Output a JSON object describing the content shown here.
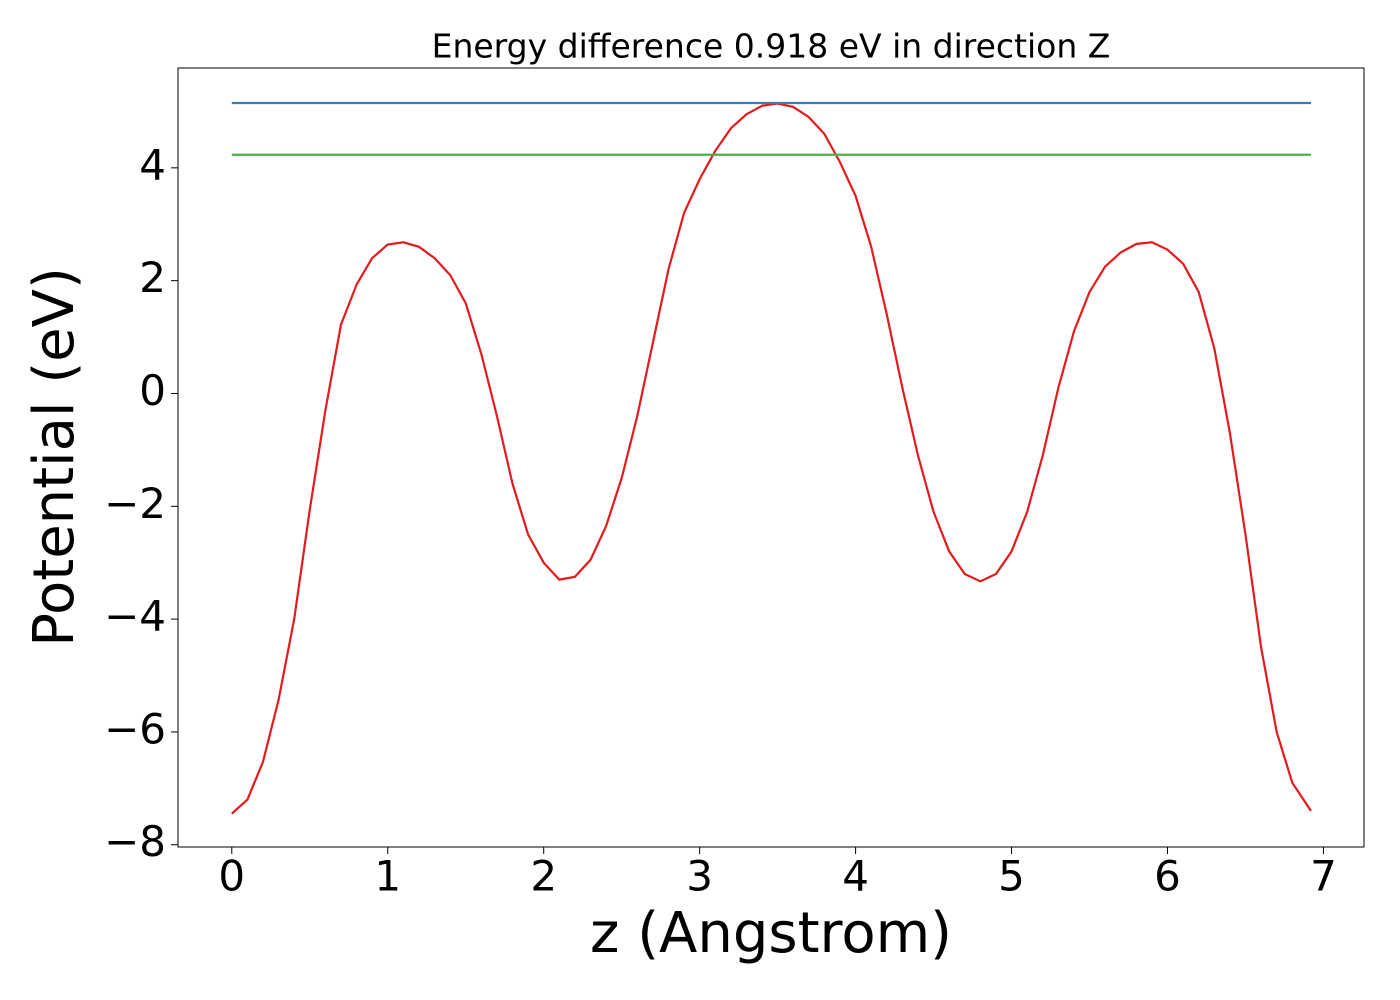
{
  "chart_data": {
    "type": "line",
    "title": "Energy difference 0.918 eV in direction Z",
    "xlabel": "z (Angstrom)",
    "ylabel": "Potential (eV)",
    "xlim": [
      -0.345,
      7.26
    ],
    "ylim": [
      -8.04,
      5.77
    ],
    "xticks": [
      0,
      1,
      2,
      3,
      4,
      5,
      6,
      7
    ],
    "yticks": [
      {
        "value": -8,
        "label": "−8"
      },
      {
        "value": -6,
        "label": "−6"
      },
      {
        "value": -4,
        "label": "−4"
      },
      {
        "value": -2,
        "label": "−2"
      },
      0,
      2,
      4
    ],
    "grid": false,
    "series": [
      {
        "color": "#e41a1c",
        "x": [
          0,
          0.1,
          0.2,
          0.3,
          0.4,
          0.5,
          0.6,
          0.7,
          0.8,
          0.9,
          1.0,
          1.1,
          1.2,
          1.3,
          1.4,
          1.5,
          1.6,
          1.7,
          1.8,
          1.9,
          2.0,
          2.1,
          2.2,
          2.3,
          2.4,
          2.5,
          2.6,
          2.7,
          2.8,
          2.9,
          3.0,
          3.1,
          3.2,
          3.3,
          3.4,
          3.5,
          3.6,
          3.7,
          3.8,
          3.9,
          4.0,
          4.1,
          4.2,
          4.3,
          4.4,
          4.5,
          4.6,
          4.7,
          4.8,
          4.9,
          5.0,
          5.1,
          5.2,
          5.3,
          5.4,
          5.5,
          5.6,
          5.7,
          5.8,
          5.9,
          6.0,
          6.1,
          6.2,
          6.3,
          6.4,
          6.5,
          6.6,
          6.7,
          6.8,
          6.92
        ],
        "values": [
          -7.45,
          -7.2,
          -6.53,
          -5.43,
          -4.0,
          -2.06,
          -0.3,
          1.22,
          1.93,
          2.4,
          2.64,
          2.68,
          2.6,
          2.4,
          2.1,
          1.6,
          0.7,
          -0.4,
          -1.6,
          -2.5,
          -3.0,
          -3.3,
          -3.25,
          -2.95,
          -2.35,
          -1.5,
          -0.4,
          0.9,
          2.2,
          3.2,
          3.8,
          4.3,
          4.7,
          4.95,
          5.1,
          5.14,
          5.08,
          4.9,
          4.6,
          4.1,
          3.5,
          2.6,
          1.4,
          0.1,
          -1.1,
          -2.1,
          -2.8,
          -3.2,
          -3.33,
          -3.2,
          -2.8,
          -2.1,
          -1.1,
          0.1,
          1.1,
          1.8,
          2.25,
          2.5,
          2.65,
          2.68,
          2.55,
          2.3,
          1.8,
          0.8,
          -0.7,
          -2.5,
          -4.5,
          -6.0,
          -6.9,
          -7.4
        ]
      },
      {
        "color": "#377eb8",
        "x": [
          0,
          6.92
        ],
        "values": [
          5.15,
          5.15
        ]
      },
      {
        "color": "#4daf4a",
        "x": [
          0,
          6.92
        ],
        "values": [
          4.232,
          4.232
        ]
      }
    ]
  }
}
